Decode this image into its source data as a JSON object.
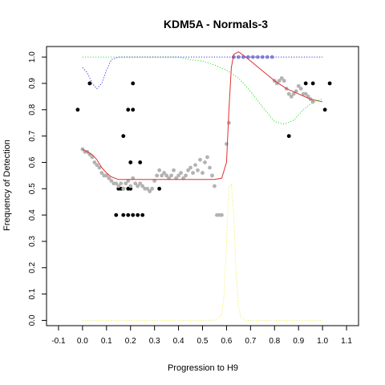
{
  "chart_data": {
    "type": "scatter",
    "title": "KDM5A - Normals-3",
    "xlabel": "Progression to H9",
    "ylabel": "Frequency of Detection",
    "xlim": [
      -0.15,
      1.15
    ],
    "ylim": [
      -0.02,
      1.04
    ],
    "xticks": [
      "-0.1",
      "0.0",
      "0.1",
      "0.2",
      "0.3",
      "0.4",
      "0.5",
      "0.6",
      "0.7",
      "0.8",
      "0.9",
      "1.0",
      "1.1"
    ],
    "yticks": [
      "0.0",
      "0.1",
      "0.2",
      "0.3",
      "0.4",
      "0.5",
      "0.6",
      "0.7",
      "0.8",
      "0.9",
      "1.0"
    ],
    "grid": false,
    "legend": "none",
    "colors": {
      "black_points": "#000000",
      "gray_points": "#b3b3b3",
      "blue_points": "#8c8cd9",
      "red_curve": "#e03030",
      "green_curve": "#33dd33",
      "blue_curve": "#3333dd",
      "yellow_curve": "#eeee55"
    },
    "series": [
      {
        "kind": "points",
        "color_key": "black_points",
        "points": [
          [
            -0.02,
            0.8
          ],
          [
            0.03,
            0.9
          ],
          [
            0.17,
            0.7
          ],
          [
            0.19,
            0.8
          ],
          [
            0.21,
            0.8
          ],
          [
            0.21,
            0.9
          ],
          [
            0.2,
            0.6
          ],
          [
            0.24,
            0.6
          ],
          [
            0.14,
            0.4
          ],
          [
            0.17,
            0.4
          ],
          [
            0.19,
            0.4
          ],
          [
            0.21,
            0.4
          ],
          [
            0.23,
            0.4
          ],
          [
            0.25,
            0.4
          ],
          [
            0.15,
            0.5
          ],
          [
            0.16,
            0.5
          ],
          [
            0.17,
            0.5
          ],
          [
            0.19,
            0.5
          ],
          [
            0.2,
            0.5
          ],
          [
            0.32,
            0.5
          ],
          [
            0.86,
            0.7
          ],
          [
            0.93,
            0.9
          ],
          [
            0.96,
            0.9
          ],
          [
            1.01,
            0.8
          ],
          [
            1.03,
            0.9
          ]
        ]
      },
      {
        "kind": "points",
        "color_key": "gray_points",
        "points": [
          [
            0.0,
            0.65
          ],
          [
            0.01,
            0.64
          ],
          [
            0.02,
            0.64
          ],
          [
            0.03,
            0.63
          ],
          [
            0.04,
            0.62
          ],
          [
            0.05,
            0.6
          ],
          [
            0.06,
            0.59
          ],
          [
            0.07,
            0.58
          ],
          [
            0.08,
            0.56
          ],
          [
            0.09,
            0.55
          ],
          [
            0.1,
            0.55
          ],
          [
            0.11,
            0.54
          ],
          [
            0.12,
            0.53
          ],
          [
            0.13,
            0.52
          ],
          [
            0.14,
            0.52
          ],
          [
            0.15,
            0.51
          ],
          [
            0.16,
            0.52
          ],
          [
            0.17,
            0.5
          ],
          [
            0.18,
            0.52
          ],
          [
            0.19,
            0.53
          ],
          [
            0.2,
            0.51
          ],
          [
            0.21,
            0.54
          ],
          [
            0.22,
            0.52
          ],
          [
            0.23,
            0.51
          ],
          [
            0.24,
            0.52
          ],
          [
            0.25,
            0.51
          ],
          [
            0.26,
            0.5
          ],
          [
            0.27,
            0.5
          ],
          [
            0.28,
            0.49
          ],
          [
            0.29,
            0.5
          ],
          [
            0.3,
            0.53
          ],
          [
            0.31,
            0.55
          ],
          [
            0.32,
            0.57
          ],
          [
            0.33,
            0.55
          ],
          [
            0.34,
            0.56
          ],
          [
            0.35,
            0.55
          ],
          [
            0.36,
            0.54
          ],
          [
            0.37,
            0.55
          ],
          [
            0.38,
            0.57
          ],
          [
            0.39,
            0.54
          ],
          [
            0.4,
            0.55
          ],
          [
            0.41,
            0.56
          ],
          [
            0.42,
            0.54
          ],
          [
            0.43,
            0.55
          ],
          [
            0.44,
            0.57
          ],
          [
            0.45,
            0.58
          ],
          [
            0.46,
            0.56
          ],
          [
            0.47,
            0.59
          ],
          [
            0.48,
            0.57
          ],
          [
            0.49,
            0.61
          ],
          [
            0.5,
            0.56
          ],
          [
            0.51,
            0.6
          ],
          [
            0.52,
            0.62
          ],
          [
            0.53,
            0.58
          ],
          [
            0.54,
            0.55
          ],
          [
            0.55,
            0.51
          ],
          [
            0.56,
            0.4
          ],
          [
            0.57,
            0.4
          ],
          [
            0.58,
            0.4
          ],
          [
            0.6,
            0.67
          ],
          [
            0.61,
            0.75
          ],
          [
            0.8,
            0.91
          ],
          [
            0.81,
            0.9
          ],
          [
            0.82,
            0.91
          ],
          [
            0.83,
            0.92
          ],
          [
            0.84,
            0.91
          ],
          [
            0.85,
            0.88
          ],
          [
            0.86,
            0.86
          ],
          [
            0.87,
            0.85
          ],
          [
            0.88,
            0.86
          ],
          [
            0.89,
            0.87
          ],
          [
            0.9,
            0.89
          ],
          [
            0.91,
            0.88
          ],
          [
            0.92,
            0.86
          ],
          [
            0.93,
            0.86
          ],
          [
            0.94,
            0.85
          ],
          [
            0.95,
            0.84
          ],
          [
            0.96,
            0.83
          ]
        ]
      },
      {
        "kind": "points",
        "color_key": "blue_points",
        "points": [
          [
            0.63,
            1.0
          ],
          [
            0.65,
            1.0
          ],
          [
            0.67,
            1.0
          ],
          [
            0.69,
            1.0
          ],
          [
            0.71,
            1.0
          ],
          [
            0.73,
            1.0
          ],
          [
            0.75,
            1.0
          ],
          [
            0.77,
            1.0
          ],
          [
            0.79,
            1.0
          ]
        ]
      },
      {
        "kind": "line",
        "style": "solid",
        "color_key": "red_curve",
        "points": [
          [
            0.0,
            0.65
          ],
          [
            0.02,
            0.64
          ],
          [
            0.04,
            0.63
          ],
          [
            0.06,
            0.61
          ],
          [
            0.08,
            0.58
          ],
          [
            0.1,
            0.56
          ],
          [
            0.12,
            0.545
          ],
          [
            0.15,
            0.535
          ],
          [
            0.2,
            0.535
          ],
          [
            0.3,
            0.535
          ],
          [
            0.4,
            0.535
          ],
          [
            0.5,
            0.535
          ],
          [
            0.55,
            0.535
          ],
          [
            0.58,
            0.54
          ],
          [
            0.6,
            0.6
          ],
          [
            0.61,
            0.8
          ],
          [
            0.62,
            0.96
          ],
          [
            0.63,
            1.01
          ],
          [
            0.65,
            1.02
          ],
          [
            0.68,
            1.0
          ],
          [
            0.72,
            0.97
          ],
          [
            0.76,
            0.94
          ],
          [
            0.8,
            0.91
          ],
          [
            0.85,
            0.88
          ],
          [
            0.9,
            0.86
          ],
          [
            0.95,
            0.84
          ],
          [
            1.0,
            0.83
          ]
        ]
      },
      {
        "kind": "line",
        "style": "dotted",
        "color_key": "green_curve",
        "points": [
          [
            0.0,
            1.0
          ],
          [
            0.1,
            1.0
          ],
          [
            0.2,
            1.0
          ],
          [
            0.3,
            1.0
          ],
          [
            0.4,
            1.0
          ],
          [
            0.45,
            0.99
          ],
          [
            0.5,
            0.985
          ],
          [
            0.55,
            0.97
          ],
          [
            0.6,
            0.95
          ],
          [
            0.65,
            0.92
          ],
          [
            0.7,
            0.87
          ],
          [
            0.75,
            0.81
          ],
          [
            0.8,
            0.755
          ],
          [
            0.84,
            0.745
          ],
          [
            0.88,
            0.76
          ],
          [
            0.92,
            0.8
          ],
          [
            0.96,
            0.83
          ],
          [
            1.0,
            0.84
          ]
        ]
      },
      {
        "kind": "line",
        "style": "dotted",
        "color_key": "blue_curve",
        "points": [
          [
            0.0,
            0.96
          ],
          [
            0.02,
            0.94
          ],
          [
            0.04,
            0.9
          ],
          [
            0.06,
            0.88
          ],
          [
            0.08,
            0.9
          ],
          [
            0.1,
            0.95
          ],
          [
            0.12,
            0.99
          ],
          [
            0.15,
            1.0
          ],
          [
            0.3,
            1.0
          ],
          [
            0.5,
            1.0
          ],
          [
            0.7,
            1.0
          ],
          [
            0.9,
            1.0
          ],
          [
            1.0,
            1.0
          ]
        ]
      },
      {
        "kind": "line",
        "style": "dotted",
        "color_key": "yellow_curve",
        "points": [
          [
            0.0,
            0.0
          ],
          [
            0.2,
            0.0
          ],
          [
            0.4,
            0.0
          ],
          [
            0.55,
            0.0
          ],
          [
            0.58,
            0.02
          ],
          [
            0.59,
            0.1
          ],
          [
            0.6,
            0.3
          ],
          [
            0.61,
            0.5
          ],
          [
            0.62,
            0.52
          ],
          [
            0.63,
            0.4
          ],
          [
            0.64,
            0.18
          ],
          [
            0.65,
            0.05
          ],
          [
            0.66,
            0.01
          ],
          [
            0.68,
            0.0
          ],
          [
            0.8,
            0.0
          ],
          [
            0.9,
            0.0
          ],
          [
            1.0,
            0.0
          ]
        ]
      }
    ]
  }
}
